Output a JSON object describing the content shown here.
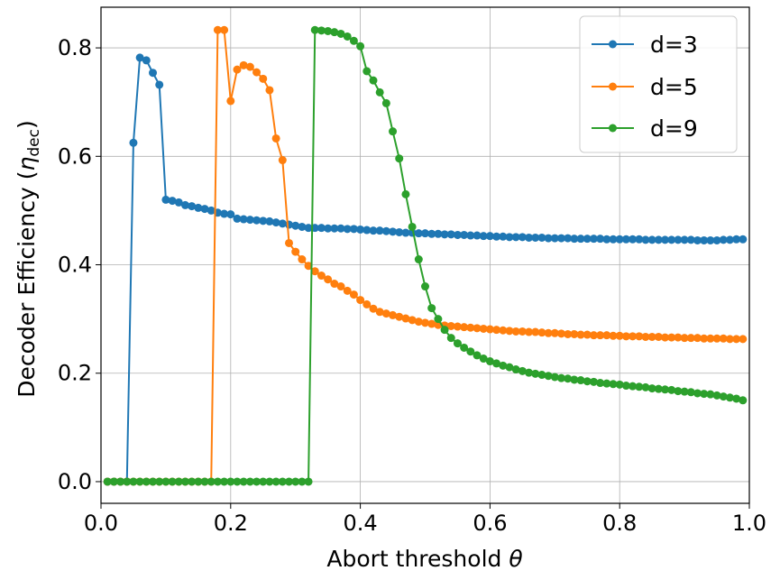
{
  "chart_data": {
    "type": "line",
    "xlabel": "Abort threshold",
    "xlabel_symbol": "θ",
    "ylabel": "Decoder Efficiency (",
    "ylabel_symbol": "η",
    "ylabel_subscript": "dec",
    "ylabel_close": ")",
    "xlim": [
      0.0,
      1.0
    ],
    "ylim": [
      -0.04,
      0.875
    ],
    "xticks": [
      0.0,
      0.2,
      0.4,
      0.6,
      0.8,
      1.0
    ],
    "xtick_labels": [
      "0.0",
      "0.2",
      "0.4",
      "0.6",
      "0.8",
      "1.0"
    ],
    "yticks": [
      0.0,
      0.2,
      0.4,
      0.6,
      0.8
    ],
    "ytick_labels": [
      "0.0",
      "0.2",
      "0.4",
      "0.6",
      "0.8"
    ],
    "grid": true,
    "legend_position": "top-right",
    "series": [
      {
        "name": "d=3",
        "color": "#1f77b4",
        "x": [
          0.01,
          0.02,
          0.03,
          0.04,
          0.05,
          0.06,
          0.07,
          0.08,
          0.09,
          0.1,
          0.11,
          0.12,
          0.13,
          0.14,
          0.15,
          0.16,
          0.17,
          0.18,
          0.19,
          0.2,
          0.21,
          0.22,
          0.23,
          0.24,
          0.25,
          0.26,
          0.27,
          0.28,
          0.29,
          0.3,
          0.31,
          0.32,
          0.33,
          0.34,
          0.35,
          0.36,
          0.37,
          0.38,
          0.39,
          0.4,
          0.41,
          0.42,
          0.43,
          0.44,
          0.45,
          0.46,
          0.47,
          0.48,
          0.49,
          0.5,
          0.51,
          0.52,
          0.53,
          0.54,
          0.55,
          0.56,
          0.57,
          0.58,
          0.59,
          0.6,
          0.61,
          0.62,
          0.63,
          0.64,
          0.65,
          0.66,
          0.67,
          0.68,
          0.69,
          0.7,
          0.71,
          0.72,
          0.73,
          0.74,
          0.75,
          0.76,
          0.77,
          0.78,
          0.79,
          0.8,
          0.81,
          0.82,
          0.83,
          0.84,
          0.85,
          0.86,
          0.87,
          0.88,
          0.89,
          0.9,
          0.91,
          0.92,
          0.93,
          0.94,
          0.95,
          0.96,
          0.97,
          0.98,
          0.99
        ],
        "y": [
          0.0,
          0.0,
          0.0,
          0.0,
          0.625,
          0.782,
          0.777,
          0.754,
          0.732,
          0.52,
          0.518,
          0.515,
          0.51,
          0.508,
          0.505,
          0.503,
          0.5,
          0.496,
          0.494,
          0.493,
          0.485,
          0.484,
          0.483,
          0.482,
          0.481,
          0.48,
          0.478,
          0.476,
          0.474,
          0.472,
          0.47,
          0.468,
          0.468,
          0.468,
          0.467,
          0.467,
          0.467,
          0.466,
          0.466,
          0.465,
          0.464,
          0.463,
          0.463,
          0.462,
          0.461,
          0.46,
          0.459,
          0.459,
          0.458,
          0.458,
          0.457,
          0.457,
          0.456,
          0.456,
          0.455,
          0.455,
          0.454,
          0.454,
          0.453,
          0.453,
          0.452,
          0.452,
          0.451,
          0.451,
          0.451,
          0.45,
          0.45,
          0.45,
          0.449,
          0.449,
          0.449,
          0.449,
          0.448,
          0.448,
          0.448,
          0.448,
          0.448,
          0.447,
          0.447,
          0.447,
          0.447,
          0.447,
          0.447,
          0.446,
          0.446,
          0.446,
          0.446,
          0.446,
          0.446,
          0.446,
          0.446,
          0.445,
          0.445,
          0.445,
          0.445,
          0.446,
          0.446,
          0.447,
          0.447
        ]
      },
      {
        "name": "d=5",
        "color": "#ff7f0e",
        "x": [
          0.01,
          0.02,
          0.03,
          0.04,
          0.05,
          0.06,
          0.07,
          0.08,
          0.09,
          0.1,
          0.11,
          0.12,
          0.13,
          0.14,
          0.15,
          0.16,
          0.17,
          0.18,
          0.19,
          0.2,
          0.21,
          0.22,
          0.23,
          0.24,
          0.25,
          0.26,
          0.27,
          0.28,
          0.29,
          0.3,
          0.31,
          0.32,
          0.33,
          0.34,
          0.35,
          0.36,
          0.37,
          0.38,
          0.39,
          0.4,
          0.41,
          0.42,
          0.43,
          0.44,
          0.45,
          0.46,
          0.47,
          0.48,
          0.49,
          0.5,
          0.51,
          0.52,
          0.53,
          0.54,
          0.55,
          0.56,
          0.57,
          0.58,
          0.59,
          0.6,
          0.61,
          0.62,
          0.63,
          0.64,
          0.65,
          0.66,
          0.67,
          0.68,
          0.69,
          0.7,
          0.71,
          0.72,
          0.73,
          0.74,
          0.75,
          0.76,
          0.77,
          0.78,
          0.79,
          0.8,
          0.81,
          0.82,
          0.83,
          0.84,
          0.85,
          0.86,
          0.87,
          0.88,
          0.89,
          0.9,
          0.91,
          0.92,
          0.93,
          0.94,
          0.95,
          0.96,
          0.97,
          0.98,
          0.99
        ],
        "y": [
          0.0,
          0.0,
          0.0,
          0.0,
          0.0,
          0.0,
          0.0,
          0.0,
          0.0,
          0.0,
          0.0,
          0.0,
          0.0,
          0.0,
          0.0,
          0.0,
          0.0,
          0.833,
          0.833,
          0.702,
          0.76,
          0.768,
          0.765,
          0.755,
          0.743,
          0.722,
          0.633,
          0.593,
          0.44,
          0.424,
          0.41,
          0.398,
          0.388,
          0.38,
          0.373,
          0.365,
          0.36,
          0.352,
          0.345,
          0.335,
          0.327,
          0.319,
          0.313,
          0.31,
          0.307,
          0.304,
          0.301,
          0.298,
          0.295,
          0.293,
          0.291,
          0.289,
          0.288,
          0.287,
          0.286,
          0.285,
          0.284,
          0.283,
          0.282,
          0.281,
          0.28,
          0.279,
          0.278,
          0.277,
          0.277,
          0.276,
          0.276,
          0.275,
          0.274,
          0.274,
          0.273,
          0.272,
          0.272,
          0.271,
          0.271,
          0.27,
          0.27,
          0.27,
          0.269,
          0.269,
          0.268,
          0.268,
          0.268,
          0.267,
          0.267,
          0.267,
          0.266,
          0.266,
          0.266,
          0.265,
          0.265,
          0.265,
          0.264,
          0.264,
          0.264,
          0.264,
          0.263,
          0.263,
          0.263
        ]
      },
      {
        "name": "d=9",
        "color": "#2ca02c",
        "x": [
          0.01,
          0.02,
          0.03,
          0.04,
          0.05,
          0.06,
          0.07,
          0.08,
          0.09,
          0.1,
          0.11,
          0.12,
          0.13,
          0.14,
          0.15,
          0.16,
          0.17,
          0.18,
          0.19,
          0.2,
          0.21,
          0.22,
          0.23,
          0.24,
          0.25,
          0.26,
          0.27,
          0.28,
          0.29,
          0.3,
          0.31,
          0.32,
          0.33,
          0.34,
          0.35,
          0.36,
          0.37,
          0.38,
          0.39,
          0.4,
          0.41,
          0.42,
          0.43,
          0.44,
          0.45,
          0.46,
          0.47,
          0.48,
          0.49,
          0.5,
          0.51,
          0.52,
          0.53,
          0.54,
          0.55,
          0.56,
          0.57,
          0.58,
          0.59,
          0.6,
          0.61,
          0.62,
          0.63,
          0.64,
          0.65,
          0.66,
          0.67,
          0.68,
          0.69,
          0.7,
          0.71,
          0.72,
          0.73,
          0.74,
          0.75,
          0.76,
          0.77,
          0.78,
          0.79,
          0.8,
          0.81,
          0.82,
          0.83,
          0.84,
          0.85,
          0.86,
          0.87,
          0.88,
          0.89,
          0.9,
          0.91,
          0.92,
          0.93,
          0.94,
          0.95,
          0.96,
          0.97,
          0.98,
          0.99
        ],
        "y": [
          0.0,
          0.0,
          0.0,
          0.0,
          0.0,
          0.0,
          0.0,
          0.0,
          0.0,
          0.0,
          0.0,
          0.0,
          0.0,
          0.0,
          0.0,
          0.0,
          0.0,
          0.0,
          0.0,
          0.0,
          0.0,
          0.0,
          0.0,
          0.0,
          0.0,
          0.0,
          0.0,
          0.0,
          0.0,
          0.0,
          0.0,
          0.0,
          0.833,
          0.832,
          0.831,
          0.829,
          0.826,
          0.821,
          0.813,
          0.803,
          0.757,
          0.74,
          0.718,
          0.698,
          0.646,
          0.596,
          0.53,
          0.47,
          0.41,
          0.36,
          0.32,
          0.3,
          0.28,
          0.265,
          0.255,
          0.247,
          0.24,
          0.233,
          0.227,
          0.222,
          0.218,
          0.214,
          0.211,
          0.207,
          0.204,
          0.201,
          0.199,
          0.197,
          0.195,
          0.193,
          0.191,
          0.19,
          0.188,
          0.187,
          0.185,
          0.184,
          0.182,
          0.181,
          0.18,
          0.179,
          0.177,
          0.176,
          0.175,
          0.174,
          0.172,
          0.171,
          0.17,
          0.169,
          0.167,
          0.166,
          0.165,
          0.163,
          0.162,
          0.161,
          0.159,
          0.157,
          0.155,
          0.153,
          0.15
        ]
      }
    ]
  }
}
